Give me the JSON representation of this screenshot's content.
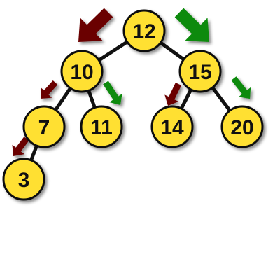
{
  "colors": {
    "node_fill": "#ffe033",
    "node_stroke": "#111111",
    "edge": "#111111",
    "left_arrow": "#6b0000",
    "right_arrow": "#0a8a0a",
    "background": "#ffffff"
  },
  "tree": {
    "nodes": [
      {
        "id": "n12",
        "value": "12"
      },
      {
        "id": "n10",
        "value": "10"
      },
      {
        "id": "n15",
        "value": "15"
      },
      {
        "id": "n7",
        "value": "7"
      },
      {
        "id": "n11",
        "value": "11"
      },
      {
        "id": "n14",
        "value": "14"
      },
      {
        "id": "n20",
        "value": "20"
      },
      {
        "id": "n3",
        "value": "3"
      }
    ],
    "edges": [
      {
        "from": "n12",
        "to": "n10"
      },
      {
        "from": "n12",
        "to": "n15"
      },
      {
        "from": "n10",
        "to": "n7"
      },
      {
        "from": "n10",
        "to": "n11"
      },
      {
        "from": "n15",
        "to": "n14"
      },
      {
        "from": "n15",
        "to": "n20"
      },
      {
        "from": "n7",
        "to": "n3"
      }
    ],
    "arrows": [
      {
        "id": "a12-left",
        "direction": "left",
        "color_key": "left_arrow"
      },
      {
        "id": "a12-right",
        "direction": "right",
        "color_key": "right_arrow"
      },
      {
        "id": "a10-left",
        "direction": "left",
        "color_key": "left_arrow"
      },
      {
        "id": "a10-right",
        "direction": "right",
        "color_key": "right_arrow"
      },
      {
        "id": "a15-left",
        "direction": "left",
        "color_key": "left_arrow"
      },
      {
        "id": "a15-right",
        "direction": "right",
        "color_key": "right_arrow"
      },
      {
        "id": "a7-left",
        "direction": "left",
        "color_key": "left_arrow"
      }
    ]
  }
}
